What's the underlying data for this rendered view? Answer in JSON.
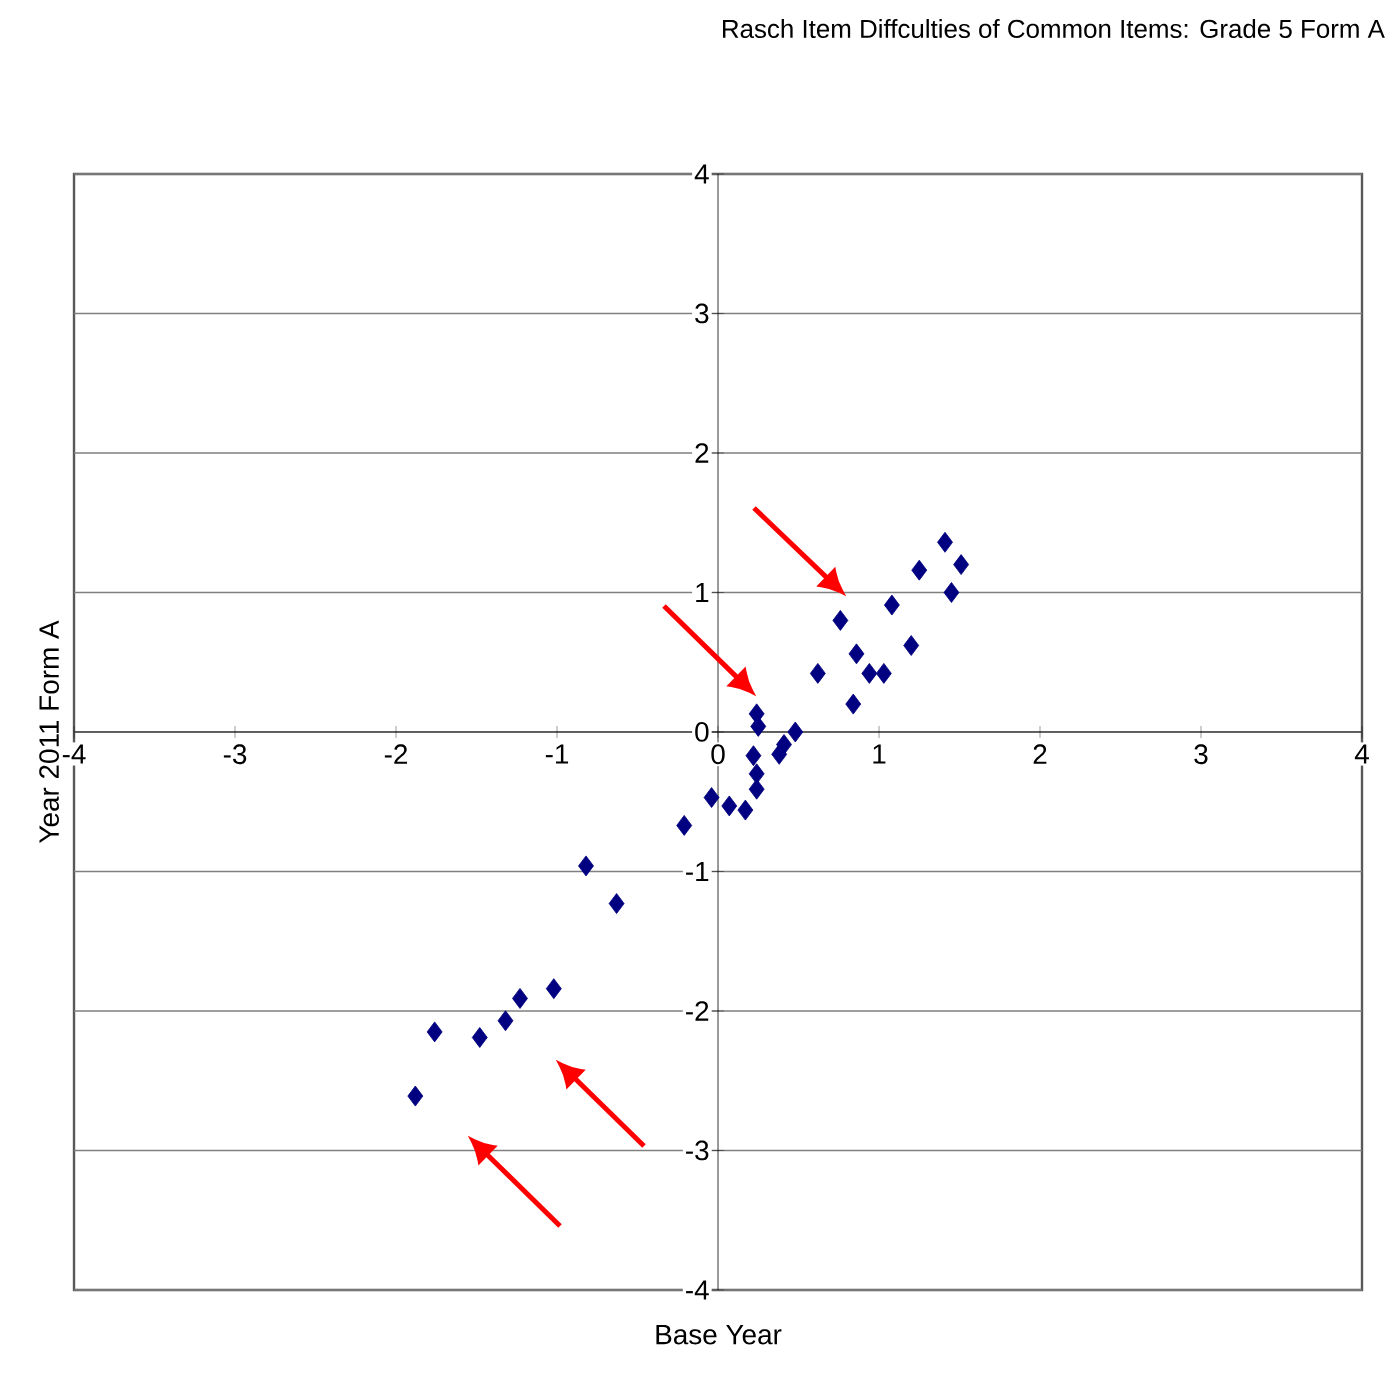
{
  "chart_data": {
    "type": "scatter",
    "title": "Rasch Item Diffculties of Common Items: Grade 5 Form A",
    "xlabel": "Base Year",
    "ylabel": "Year 2011 Form A",
    "x": [
      -1.88,
      -1.76,
      -1.48,
      -1.32,
      -1.23,
      -1.02,
      -0.82,
      -0.63,
      -0.21,
      -0.04,
      0.07,
      0.17,
      0.24,
      0.24,
      0.22,
      0.38,
      0.41,
      0.48,
      0.24,
      0.25,
      0.62,
      0.76,
      0.84,
      0.86,
      0.94,
      1.03,
      1.08,
      1.2,
      1.25,
      1.41,
      1.51,
      1.45
    ],
    "values": [
      -2.61,
      -2.15,
      -2.19,
      -2.07,
      -1.91,
      -1.84,
      -0.96,
      -1.23,
      -0.67,
      -0.47,
      -0.53,
      -0.56,
      -0.41,
      -0.3,
      -0.17,
      -0.16,
      -0.09,
      0.0,
      0.13,
      0.04,
      0.42,
      0.8,
      0.2,
      0.56,
      0.42,
      0.42,
      0.91,
      0.62,
      1.16,
      1.36,
      1.2,
      1.0
    ],
    "color": "#000080",
    "marker": "diamond",
    "grid": "y",
    "legend": false,
    "xlim": [
      -4,
      4
    ],
    "ylim": [
      -4,
      4
    ],
    "xticks": [
      -4,
      -3,
      -2,
      -1,
      0,
      1,
      2,
      3,
      4
    ],
    "yticks": [
      -4,
      -3,
      -2,
      -1,
      0,
      1,
      2,
      3,
      4
    ]
  }
}
